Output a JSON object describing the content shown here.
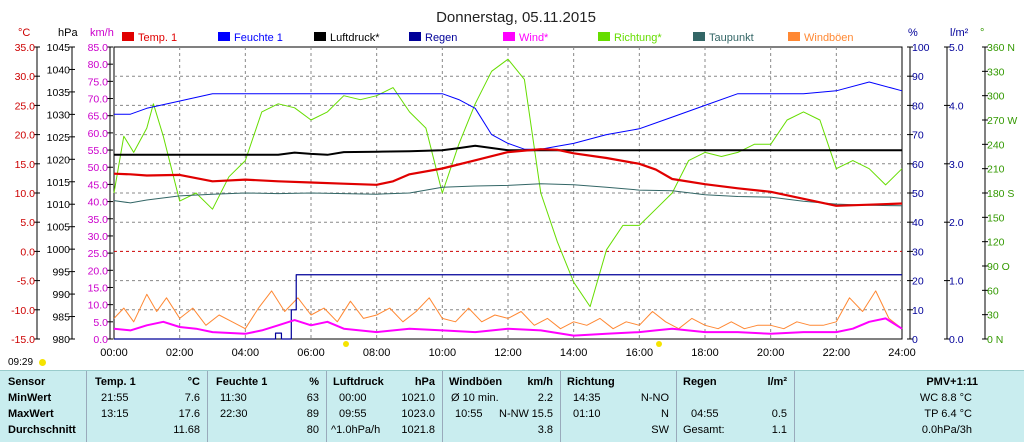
{
  "title": "Donnerstag, 05.11.2015",
  "time_marker": "09:29",
  "axis_units": [
    "°C",
    "hPa",
    "km/h",
    "%",
    "l/m²",
    "°"
  ],
  "legend": [
    {
      "label": "Temp. 1",
      "color": "#e00000"
    },
    {
      "label": "Feuchte 1",
      "color": "#0000ff"
    },
    {
      "label": "Luftdruck*",
      "color": "#000000"
    },
    {
      "label": "Regen",
      "color": "#000099"
    },
    {
      "label": "Wind*",
      "color": "#ff00ff"
    },
    {
      "label": "Richtung*",
      "color": "#66dd00"
    },
    {
      "label": "Taupunkt",
      "color": "#336666"
    },
    {
      "label": "Windböen",
      "color": "#ff8833"
    }
  ],
  "chart_data": {
    "type": "line",
    "title": "Donnerstag, 05.11.2015",
    "x_ticks": [
      "00:00",
      "02:00",
      "04:00",
      "06:00",
      "08:00",
      "10:00",
      "12:00",
      "14:00",
      "16:00",
      "18:00",
      "20:00",
      "22:00",
      "24:00"
    ],
    "xlim": [
      0,
      24
    ],
    "axes": {
      "temp_c": {
        "unit": "°C",
        "range": [
          -15,
          35
        ],
        "ticks": [
          "35.0",
          "30.0",
          "25.0",
          "20.0",
          "15.0",
          "10.0",
          "5.0",
          "0.0",
          "-5.0",
          "-10.0",
          "-15.0"
        ]
      },
      "pressure_hpa": {
        "unit": "hPa",
        "range": [
          980,
          1045
        ],
        "ticks": [
          "1045",
          "1040",
          "1035",
          "1030",
          "1025",
          "1020",
          "1015",
          "1010",
          "1005",
          "1000",
          "995",
          "990",
          "985",
          "980"
        ]
      },
      "wind_kmh": {
        "unit": "km/h",
        "range": [
          0,
          85
        ],
        "ticks": [
          "85.0",
          "80.0",
          "75.0",
          "70.0",
          "65.0",
          "60.0",
          "55.0",
          "50.0",
          "45.0",
          "40.0",
          "35.0",
          "30.0",
          "25.0",
          "20.0",
          "15.0",
          "10.0",
          "5.0",
          "0.0"
        ]
      },
      "humidity_pct": {
        "unit": "%",
        "range": [
          0,
          100
        ],
        "ticks": [
          "100",
          "90",
          "80",
          "70",
          "60",
          "50",
          "40",
          "30",
          "20",
          "10",
          "0"
        ]
      },
      "rain_lm2": {
        "unit": "l/m²",
        "range": [
          0,
          5
        ],
        "ticks": [
          "5.0",
          "4.0",
          "3.0",
          "2.0",
          "1.0",
          "0.0"
        ]
      },
      "direction_deg": {
        "unit": "°",
        "range": [
          0,
          360
        ],
        "ticks": [
          "360 N",
          "330",
          "300",
          "270 W",
          "240",
          "210",
          "180 S",
          "150",
          "120",
          "90 O",
          "60",
          "30",
          "0 N"
        ]
      }
    },
    "series": [
      {
        "name": "Temp. 1",
        "axis": "temp_c",
        "x": [
          0,
          0.5,
          1,
          2,
          3,
          4,
          5,
          6,
          7,
          8,
          8.5,
          9,
          10,
          11,
          12,
          13,
          13.5,
          14,
          15,
          16,
          16.5,
          17,
          18,
          19,
          20,
          21,
          22,
          23,
          24
        ],
        "y": [
          13.3,
          13.2,
          13.0,
          13.1,
          12.0,
          12.3,
          12.0,
          11.8,
          11.6,
          11.4,
          12.0,
          13.2,
          14.2,
          15.6,
          17.0,
          17.5,
          17.4,
          16.8,
          16.0,
          15.0,
          14.0,
          12.4,
          11.5,
          10.8,
          10.2,
          9.0,
          7.8,
          8.0,
          8.2
        ]
      },
      {
        "name": "Feuchte 1",
        "axis": "humidity_pct",
        "x": [
          0,
          0.5,
          1,
          1.8,
          3,
          4,
          5,
          6,
          7,
          8,
          9,
          10,
          10.5,
          11,
          11.5,
          12,
          12.5,
          13,
          13.5,
          14,
          15,
          16,
          17,
          18,
          19,
          20,
          21,
          22,
          23,
          24
        ],
        "y": [
          77,
          77,
          79,
          81,
          84,
          84,
          84,
          84,
          84,
          84,
          84,
          84,
          82,
          79,
          70,
          67,
          65,
          65,
          66,
          67,
          70,
          72,
          76,
          80,
          84,
          84,
          84,
          85,
          88,
          85
        ]
      },
      {
        "name": "Luftdruck*",
        "axis": "pressure_hpa",
        "x": [
          0,
          1,
          2,
          3,
          4,
          5,
          5.5,
          6,
          6.5,
          7,
          8,
          9,
          10,
          10.5,
          11,
          12,
          13,
          14,
          15,
          16,
          17,
          18,
          19,
          20,
          21,
          22,
          23,
          24
        ],
        "y": [
          1021.0,
          1021.0,
          1021.0,
          1021.0,
          1021.0,
          1021.0,
          1021.5,
          1021.2,
          1021.0,
          1021.6,
          1021.7,
          1021.8,
          1022.0,
          1022.5,
          1023.0,
          1022.0,
          1022.0,
          1022.0,
          1022.0,
          1022.0,
          1022.0,
          1022.0,
          1022.0,
          1022.0,
          1022.0,
          1022.0,
          1022.0,
          1022.0
        ]
      },
      {
        "name": "Regen",
        "axis": "rain_lm2",
        "x": [
          0,
          4.9,
          4.92,
          5.0,
          5.1,
          5.3,
          5.4,
          5.42,
          5.5,
          5.55,
          24
        ],
        "y": [
          0,
          0,
          0.1,
          0.1,
          0,
          0,
          0.5,
          0.5,
          0.5,
          1.1,
          1.1
        ]
      },
      {
        "name": "Wind*",
        "axis": "wind_kmh",
        "x": [
          0,
          0.5,
          1,
          1.5,
          2,
          2.5,
          3,
          4,
          4.5,
          5,
          5.5,
          6,
          6.5,
          7,
          8,
          9,
          10,
          11,
          12,
          13,
          14,
          15,
          16,
          16.5,
          17,
          18,
          19,
          20,
          21,
          22,
          22.5,
          23,
          23.5,
          24
        ],
        "y": [
          3.0,
          2.5,
          4.0,
          5.0,
          3.5,
          3.0,
          2.0,
          1.5,
          2.5,
          4.0,
          5.5,
          4.0,
          5.0,
          3.0,
          2.0,
          3.0,
          2.5,
          2.0,
          3.0,
          2.5,
          1.0,
          1.5,
          2.0,
          2.5,
          3.0,
          2.0,
          2.0,
          1.5,
          2.0,
          2.0,
          3.0,
          5.0,
          6.0,
          3.0
        ]
      },
      {
        "name": "Richtung*",
        "axis": "direction_deg",
        "x": [
          0,
          0.3,
          0.6,
          1.0,
          1.2,
          1.5,
          2.0,
          2.5,
          3.0,
          3.5,
          4.0,
          4.5,
          5.0,
          5.5,
          6.0,
          6.5,
          7.0,
          7.5,
          8.0,
          8.5,
          9.0,
          9.5,
          10.0,
          10.5,
          11.0,
          11.5,
          12.0,
          12.5,
          13.0,
          13.5,
          14.0,
          14.5,
          15.0,
          15.5,
          16.0,
          16.5,
          17.0,
          17.5,
          18.0,
          18.5,
          19.0,
          19.5,
          20.0,
          20.5,
          21.0,
          21.5,
          22.0,
          22.5,
          23.0,
          23.5,
          24.0
        ],
        "y": [
          180,
          250,
          230,
          260,
          290,
          250,
          170,
          180,
          160,
          200,
          220,
          280,
          290,
          285,
          270,
          280,
          300,
          295,
          300,
          310,
          280,
          260,
          180,
          240,
          290,
          330,
          345,
          320,
          180,
          120,
          70,
          40,
          110,
          140,
          140,
          160,
          180,
          220,
          230,
          225,
          230,
          240,
          240,
          270,
          280,
          270,
          210,
          220,
          210,
          190,
          210
        ]
      },
      {
        "name": "Taupunkt",
        "axis": "temp_c",
        "x": [
          0,
          0.5,
          1,
          2,
          3,
          4,
          5,
          6,
          7,
          8,
          9,
          10,
          11,
          12,
          13,
          14,
          15,
          16,
          17,
          18,
          19,
          20,
          21,
          22,
          23,
          24
        ],
        "y": [
          8.7,
          8.3,
          8.8,
          9.5,
          9.8,
          10.0,
          9.9,
          10.0,
          9.9,
          9.8,
          10.0,
          11.0,
          11.2,
          11.3,
          11.6,
          11.4,
          11.0,
          10.5,
          10.4,
          9.7,
          9.4,
          9.3,
          8.6,
          8.1,
          7.9,
          7.8
        ]
      },
      {
        "name": "Windböen",
        "axis": "wind_kmh",
        "x": [
          0,
          0.3,
          0.6,
          1,
          1.3,
          1.6,
          2,
          2.4,
          2.8,
          3.2,
          3.6,
          4,
          4.4,
          4.8,
          5.2,
          5.6,
          6,
          6.4,
          6.8,
          7.2,
          7.6,
          8,
          8.4,
          8.8,
          9.2,
          9.6,
          10,
          10.4,
          10.8,
          11.2,
          11.6,
          12,
          12.4,
          12.8,
          13.2,
          13.6,
          14,
          14.4,
          14.8,
          15.2,
          15.6,
          16,
          16.4,
          16.8,
          17.2,
          17.6,
          18,
          18.4,
          18.8,
          19.2,
          19.6,
          20,
          20.4,
          20.8,
          21.2,
          21.6,
          22,
          22.4,
          22.8,
          23.2,
          23.6,
          24
        ],
        "y": [
          6,
          9,
          5,
          13,
          8,
          12,
          6,
          9,
          4,
          7,
          5,
          3,
          9,
          14,
          8,
          12,
          7,
          9,
          5,
          11,
          6,
          7,
          9,
          5,
          8,
          12,
          6,
          5,
          9,
          5,
          7,
          6,
          8,
          4,
          6,
          3,
          5,
          4,
          6,
          3,
          5,
          4,
          8,
          5,
          3,
          6,
          4,
          3,
          5,
          3,
          4,
          4,
          3,
          5,
          4,
          4,
          5,
          12,
          8,
          14,
          6,
          3
        ]
      }
    ]
  },
  "stats": {
    "sensor": {
      "header": "Sensor",
      "rows": [
        "MinWert",
        "MaxWert",
        "Durchschnitt"
      ]
    },
    "temp": {
      "header": "Temp. 1",
      "unit": "°C",
      "rows": [
        [
          "21:55",
          "7.6"
        ],
        [
          "13:15",
          "17.6"
        ],
        [
          "",
          "11.68"
        ]
      ]
    },
    "feuchte": {
      "header": "Feuchte 1",
      "unit": "%",
      "rows": [
        [
          "11:30",
          "63"
        ],
        [
          "22:30",
          "89"
        ],
        [
          "",
          "80"
        ]
      ]
    },
    "druck": {
      "header": "Luftdruck",
      "unit": "hPa",
      "rows": [
        [
          "00:00",
          "1021.0"
        ],
        [
          "09:55",
          "1023.0"
        ],
        [
          "^1.0hPa/h",
          "1021.8"
        ]
      ]
    },
    "boeen": {
      "header": "Windböen",
      "unit": "km/h",
      "rows": [
        [
          "Ø 10 min.",
          "",
          "2.2"
        ],
        [
          "10:55",
          "N-NW",
          "15.5"
        ],
        [
          "",
          "",
          "3.8"
        ]
      ]
    },
    "richtung": {
      "header": "Richtung",
      "rows": [
        [
          "14:35",
          "N-NO"
        ],
        [
          "01:10",
          "N"
        ],
        [
          "",
          "SW"
        ]
      ]
    },
    "regen": {
      "header": "Regen",
      "unit": "l/m²",
      "rows": [
        [
          "",
          ""
        ],
        [
          "04:55",
          "0.5"
        ],
        [
          "Gesamt:",
          "1.1"
        ]
      ]
    },
    "pmv": {
      "header": "PMV+1:11",
      "rows": [
        "WC 8.8 °C",
        "TP 6.4 °C",
        "0.0hPa/3h"
      ]
    }
  }
}
